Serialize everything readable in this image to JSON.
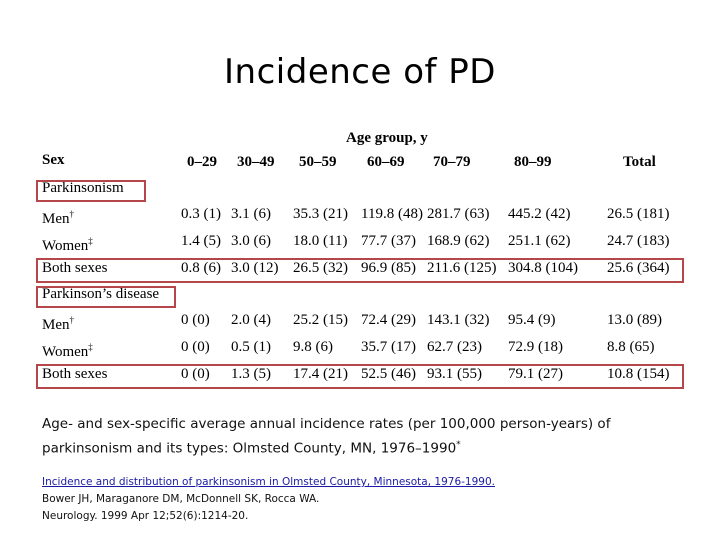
{
  "title": "Incidence of PD",
  "table": {
    "age_group_header": "Age group, y",
    "sex_header": "Sex",
    "columns": [
      "0–29",
      "30–49",
      "50–59",
      "60–69",
      "70–79",
      "80–99",
      "Total"
    ],
    "sections": [
      {
        "label": "Parkinsonism",
        "rows": [
          {
            "sex": "Men",
            "mark": "†",
            "values": [
              "0.3 (1)",
              "3.1 (6)",
              "35.3 (21)",
              "119.8 (48)",
              "281.7 (63)",
              "445.2 (42)",
              "26.5 (181)"
            ]
          },
          {
            "sex": "Women",
            "mark": "‡",
            "values": [
              "1.4 (5)",
              "3.0 (6)",
              "18.0 (11)",
              "77.7 (37)",
              "168.9 (62)",
              "251.1 (62)",
              "24.7 (183)"
            ]
          },
          {
            "sex": "Both sexes",
            "mark": "",
            "values": [
              "0.8 (6)",
              "3.0 (12)",
              "26.5 (32)",
              "96.9 (85)",
              "211.6 (125)",
              "304.8 (104)",
              "25.6 (364)"
            ]
          }
        ]
      },
      {
        "label": "Parkinson’s disease",
        "rows": [
          {
            "sex": "Men",
            "mark": "†",
            "values": [
              "0 (0)",
              "2.0 (4)",
              "25.2 (15)",
              "72.4 (29)",
              "143.1 (32)",
              "95.4 (9)",
              "13.0 (89)"
            ]
          },
          {
            "sex": "Women",
            "mark": "‡",
            "values": [
              "0 (0)",
              "0.5 (1)",
              "9.8 (6)",
              "35.7 (17)",
              "62.7 (23)",
              "72.9 (18)",
              "8.8 (65)"
            ]
          },
          {
            "sex": "Both sexes",
            "mark": "",
            "values": [
              "0 (0)",
              "1.3 (5)",
              "17.4 (21)",
              "52.5 (46)",
              "93.1 (55)",
              "79.1 (27)",
              "10.8 (154)"
            ]
          }
        ]
      }
    ],
    "highlight_color": "#b5474a"
  },
  "caption": {
    "text": "Age- and sex-specific average annual incidence rates (per 100,000 person-years) of parkinsonism and its types: Olmsted County, MN, 1976–1990",
    "mark": "*"
  },
  "reference": {
    "link_text": "Incidence and distribution of parkinsonism in Olmsted County, Minnesota, 1976-1990.",
    "authors": "Bower JH, Maraganore DM, McDonnell SK, Rocca WA.",
    "journal": "Neurology. 1999 Apr 12;52(6):1214-20."
  }
}
